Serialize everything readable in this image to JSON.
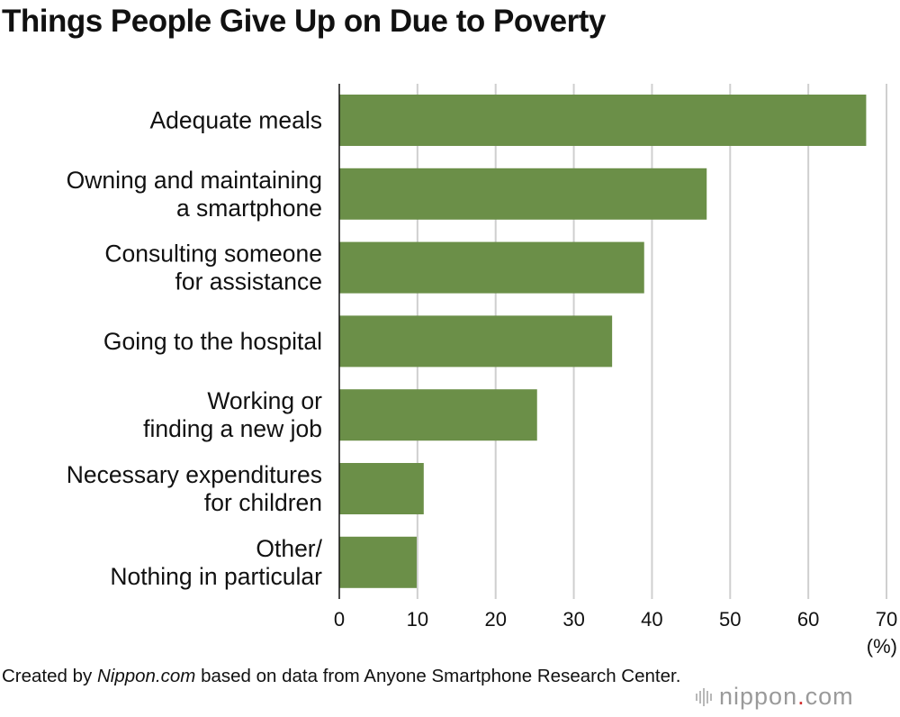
{
  "chart_data": {
    "type": "bar",
    "orientation": "horizontal",
    "title": "Things People Give Up on Due to Poverty",
    "categories": [
      [
        "Adequate meals"
      ],
      [
        "Owning and maintaining",
        "a smartphone"
      ],
      [
        "Consulting someone",
        "for assistance"
      ],
      [
        "Going to the hospital"
      ],
      [
        "Working or",
        "finding a new job"
      ],
      [
        "Necessary expenditures",
        "for children"
      ],
      [
        "Other/",
        "Nothing in particular"
      ]
    ],
    "values": [
      67.4,
      47.0,
      39.0,
      34.9,
      25.3,
      10.8,
      9.9
    ],
    "xlim": [
      0,
      70
    ],
    "xticks": [
      "0",
      "10",
      "20",
      "30",
      "40",
      "50",
      "60",
      "70"
    ],
    "xunit": "(%)",
    "bar_color": "#6b8f48",
    "grid": true
  },
  "credit": {
    "prefix": "Created by ",
    "source_site": "Nippon.com",
    "suffix": " based on data from Anyone Smartphone Research Center."
  },
  "logo": {
    "name": "nippon",
    "dot": ".",
    "tld": "com"
  }
}
